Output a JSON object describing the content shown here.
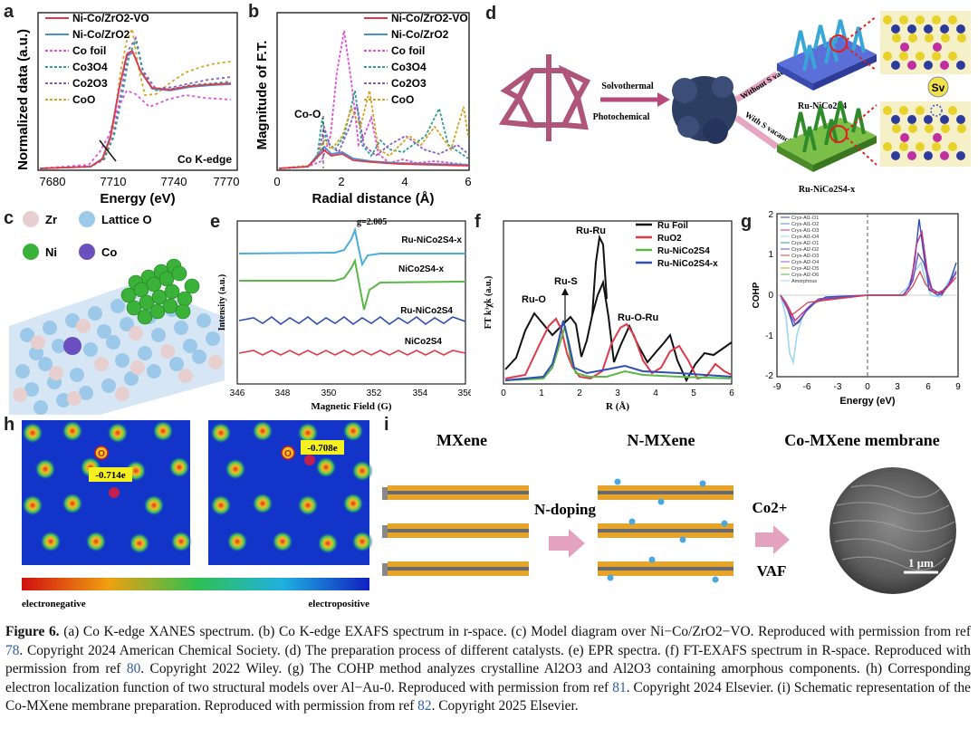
{
  "colors": {
    "red": "#e0394a",
    "blue": "#4a8fd0",
    "magenta": "#e24fd6",
    "teal": "#2e9f8f",
    "purple": "#8a5cc8",
    "gold": "#d6a21e",
    "ref_link": "#2f5da8"
  },
  "panel_a": {
    "label": "a",
    "xlabel": "Energy (eV)",
    "ylabel": "Normalized data (a.u.)",
    "xticks": [
      "7680",
      "7710",
      "7740",
      "7770"
    ],
    "annotation": "Co K-edge",
    "legend": [
      "Ni-Co/ZrO2-VO",
      "Ni-Co/ZrO2",
      "Co foil",
      "Co3O4",
      "Co2O3",
      "CoO"
    ]
  },
  "panel_b": {
    "label": "b",
    "xlabel": "Radial distance (Å)",
    "ylabel": "Magnitude of F.T.",
    "xticks": [
      "0",
      "2",
      "4",
      "6"
    ],
    "annotation": "Co-O",
    "legend": [
      "Ni-Co/ZrO2-VO",
      "Ni-Co/ZrO2",
      "Co foil",
      "Co3O4",
      "Co2O3",
      "CoO"
    ]
  },
  "panel_c": {
    "label": "c",
    "legend": [
      {
        "name": "Zr",
        "color": "#e8cfcf"
      },
      {
        "name": "Lattice O",
        "color": "#9cc8ea"
      },
      {
        "name": "Ni",
        "color": "#3ab23a"
      },
      {
        "name": "Co",
        "color": "#6b4fbf"
      }
    ]
  },
  "panel_d": {
    "label": "d",
    "text_top": "Solvothermal",
    "text_bottom": "Photochemical",
    "arrow_top": "Without S vacancies",
    "arrow_bottom": "With S vacancies",
    "product_top": "Ru-NiCo2S4",
    "product_bottom": "Ru-NiCo2S4-x",
    "vacancy": "Sv"
  },
  "panel_e": {
    "label": "e",
    "xlabel": "Magnetic Field (G)",
    "ylabel": "Intensity (a.u.)",
    "g_value": "g=2.005",
    "xticks": [
      "346",
      "348",
      "350",
      "352",
      "354",
      "356"
    ],
    "traces": [
      "Ru-NiCo2S4-x",
      "NiCo2S4-x",
      "Ru-NiCo2S4",
      "NiCo2S4"
    ]
  },
  "panel_f": {
    "label": "f",
    "xlabel": "R (Å)",
    "ylabel": "FT k³χk (a.u.)",
    "xticks": [
      "0",
      "1",
      "2",
      "3",
      "4",
      "5",
      "6"
    ],
    "annotations": [
      "Ru-Ru",
      "Ru-S",
      "Ru-O",
      "Ru-O-Ru"
    ],
    "legend": [
      "Ru Foil",
      "RuO2",
      "Ru-NiCo2S4",
      "Ru-NiCo2S4-x"
    ]
  },
  "panel_g": {
    "label": "g",
    "xlabel": "Energy (eV)",
    "ylabel": "COHP",
    "xticks": [
      "-9",
      "-6",
      "-3",
      "0",
      "3",
      "6",
      "9"
    ],
    "yticks": [
      "2",
      "1",
      "0",
      "-1",
      "-2"
    ],
    "legend": [
      "Crys-Al1-O1",
      "Crys-Al1-O2",
      "Crys-Al1-O3",
      "Crys-Al1-O4",
      "Crys-Al2-O1",
      "Crys-Al2-O2",
      "Crys-Al2-O3",
      "Crys-Al2-O4",
      "Crys-Al2-O5",
      "Crys-Al2-O6",
      "Amorphous"
    ]
  },
  "panel_h": {
    "label": "h",
    "left_o": "O",
    "left_value": "-0.714e",
    "right_o": "O",
    "right_value": "-0.708e",
    "scale_left": "electronegative",
    "scale_right": "electropositive"
  },
  "panel_i": {
    "label": "i",
    "title1": "MXene",
    "title2": "N-MXene",
    "title3": "Co-MXene membrane",
    "step1": "N-doping",
    "step2_ion": "Co2+",
    "step2_method": "VAF",
    "scale_bar": "1 μm"
  },
  "caption": {
    "fig": "Figure 6.",
    "t1": " (a) Co K-edge XANES spectrum. (b) Co K-edge EXAFS spectrum in r-space. (c) Model diagram over Ni−Co/ZrO2−VO. Reproduced with permission from ref ",
    "r1": "78",
    "t2": ". Copyright 2024 American Chemical Society. (d) The preparation process of different catalysts. (e) EPR spectra. (f) FT-EXAFS spectrum in R-space. Reproduced with permission from ref ",
    "r2": "80",
    "t3": ". Copyright 2022 Wiley. (g) The COHP method analyzes crystalline Al2O3 and Al2O3 containing amorphous components. (h) Corresponding electron localization function of two structural models over Al−Au-0. Reproduced with permission from ref ",
    "r3": "81",
    "t4": ". Copyright 2024 Elsevier. (i) Schematic representation of the Co-MXene membrane preparation. Reproduced with permission from ref ",
    "r4": "82",
    "t5": ". Copyright 2025 Elsevier."
  }
}
